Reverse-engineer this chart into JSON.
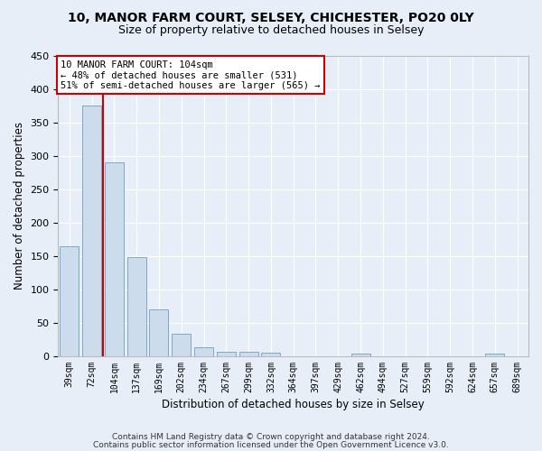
{
  "title_line1": "10, MANOR FARM COURT, SELSEY, CHICHESTER, PO20 0LY",
  "title_line2": "Size of property relative to detached houses in Selsey",
  "xlabel": "Distribution of detached houses by size in Selsey",
  "ylabel": "Number of detached properties",
  "categories": [
    "39sqm",
    "72sqm",
    "104sqm",
    "137sqm",
    "169sqm",
    "202sqm",
    "234sqm",
    "267sqm",
    "299sqm",
    "332sqm",
    "364sqm",
    "397sqm",
    "429sqm",
    "462sqm",
    "494sqm",
    "527sqm",
    "559sqm",
    "592sqm",
    "624sqm",
    "657sqm",
    "689sqm"
  ],
  "values": [
    165,
    375,
    290,
    148,
    70,
    33,
    14,
    7,
    6,
    5,
    0,
    0,
    0,
    4,
    0,
    0,
    0,
    0,
    0,
    4,
    0
  ],
  "bar_color": "#cddcec",
  "bar_edge_color": "#7aaac8",
  "vline_color": "#cc0000",
  "vline_x": 1.5,
  "annotation_line1": "10 MANOR FARM COURT: 104sqm",
  "annotation_line2": "← 48% of detached houses are smaller (531)",
  "annotation_line3": "51% of semi-detached houses are larger (565) →",
  "annotation_box_facecolor": "#ffffff",
  "annotation_box_edgecolor": "#cc0000",
  "ylim": [
    0,
    450
  ],
  "yticks": [
    0,
    50,
    100,
    150,
    200,
    250,
    300,
    350,
    400,
    450
  ],
  "footer_line1": "Contains HM Land Registry data © Crown copyright and database right 2024.",
  "footer_line2": "Contains public sector information licensed under the Open Government Licence v3.0.",
  "bg_color": "#e8eef8",
  "grid_color": "#d0d8e8"
}
